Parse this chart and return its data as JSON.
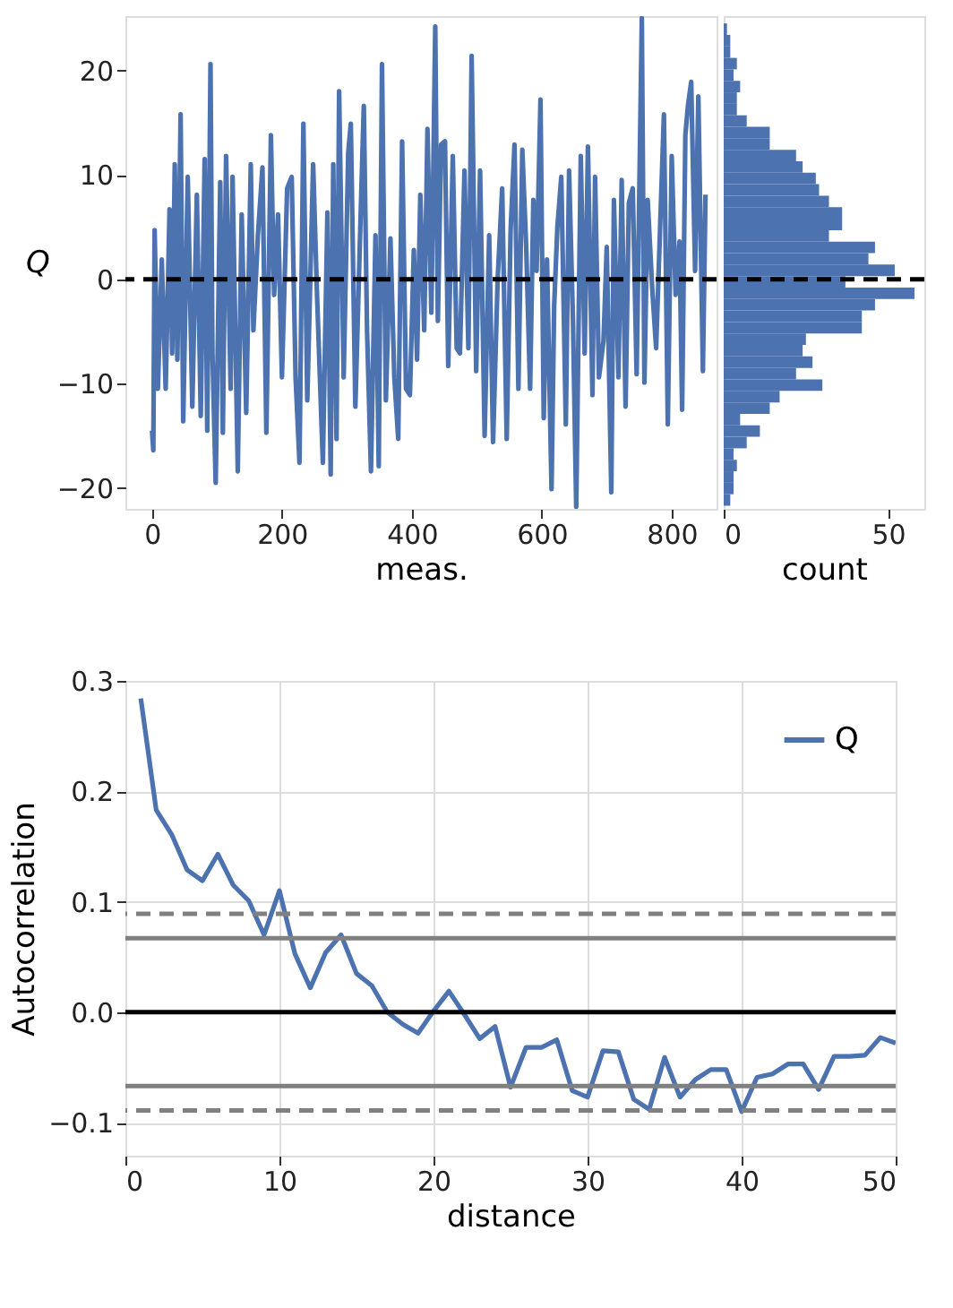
{
  "chart_data": [
    {
      "type": "line",
      "xlabel": "meas.",
      "ylabel": "Q",
      "xlim": [
        -41,
        869
      ],
      "ylim": [
        -22,
        25.2
      ],
      "xticks": [
        0,
        200,
        400,
        600,
        800
      ],
      "yticks": [
        -20,
        -10,
        0,
        10,
        20
      ],
      "grid": false,
      "legend": false,
      "line_style": "solid",
      "marker": "none",
      "color": "#4c72b0",
      "x": [
        0,
        2,
        4,
        9,
        15,
        21,
        27,
        31,
        35,
        39,
        44,
        48,
        55,
        62,
        69,
        75,
        81,
        85,
        90,
        93,
        98,
        105,
        109,
        114,
        121,
        124,
        132,
        138,
        145,
        152,
        156,
        163,
        170,
        176,
        183,
        188,
        194,
        200,
        208,
        215,
        221,
        227,
        233,
        239,
        248,
        254,
        263,
        270,
        275,
        279,
        284,
        288,
        295,
        302,
        306,
        313,
        320,
        326,
        331,
        337,
        344,
        349,
        354,
        360,
        367,
        373,
        379,
        385,
        391,
        397,
        403,
        408,
        413,
        419,
        424,
        430,
        436,
        440,
        445,
        451,
        456,
        463,
        469,
        474,
        481,
        487,
        492,
        499,
        505,
        512,
        519,
        525,
        532,
        539,
        546,
        552,
        558,
        564,
        570,
        576,
        582,
        587,
        592,
        598,
        603,
        608,
        615,
        619,
        624,
        630,
        637,
        642,
        648,
        653,
        660,
        666,
        671,
        678,
        682,
        688,
        695,
        700,
        707,
        711,
        718,
        723,
        729,
        734,
        740,
        746,
        754,
        758,
        763,
        770,
        776,
        782,
        788,
        794,
        800,
        806,
        812,
        816,
        821,
        825,
        830,
        836,
        841,
        848,
        852
      ],
      "values": [
        -14.5,
        -16.4,
        4.7,
        -10.5,
        1.9,
        -10.5,
        6.7,
        -7.1,
        11.0,
        -7.7,
        15.8,
        -13.6,
        9.8,
        -12.2,
        8.1,
        -13.1,
        11.5,
        -14.5,
        20.6,
        -7.1,
        -19.5,
        9.3,
        -14.7,
        11.8,
        -10.5,
        9.8,
        -18.4,
        6.2,
        -12.8,
        11.0,
        -4.9,
        4.2,
        10.7,
        -14.7,
        13.8,
        -1.5,
        6.2,
        -9.4,
        8.7,
        9.8,
        -9.4,
        -17.6,
        14.9,
        -11.6,
        11.0,
        -1.5,
        -17.6,
        6.4,
        -18.7,
        11.0,
        -15.3,
        18.0,
        -9.4,
        12.1,
        14.9,
        -12.2,
        3.6,
        16.6,
        -4.9,
        -18.4,
        4.2,
        -17.9,
        20.6,
        -11.6,
        3.9,
        -9.4,
        -15.3,
        13.2,
        -10.5,
        -11.1,
        2.8,
        -7.7,
        8.1,
        -4.9,
        14.4,
        -3.2,
        24.2,
        -4.0,
        12.9,
        13.2,
        -8.3,
        11.8,
        -6.6,
        -7.1,
        10.4,
        -6.6,
        21.4,
        -8.8,
        10.4,
        -15.0,
        4.2,
        -15.6,
        -0.1,
        8.7,
        -15.3,
        4.7,
        12.9,
        -10.5,
        12.4,
        3.1,
        -10.5,
        7.6,
        0.8,
        17.2,
        -13.3,
        1.9,
        -20.1,
        -2.6,
        5.0,
        9.8,
        -13.9,
        10.4,
        -4.0,
        -21.8,
        11.8,
        -7.1,
        12.7,
        -11.1,
        9.8,
        -9.4,
        -5.9,
        3.1,
        -20.4,
        7.6,
        -9.4,
        9.5,
        -12.2,
        7.3,
        8.7,
        -9.1,
        25.0,
        -9.9,
        7.6,
        -0.9,
        -6.6,
        4.7,
        15.8,
        -13.9,
        11.8,
        -1.5,
        3.6,
        -12.5,
        13.8,
        16.6,
        18.9,
        0.8,
        17.5,
        -8.8,
        8.1
      ],
      "ref_lines": [
        {
          "axis": "y",
          "value": 0,
          "color": "#000000",
          "line_style": "dashed"
        }
      ]
    },
    {
      "type": "histogram",
      "orientation": "horizontal",
      "xlabel": "count",
      "xlim": [
        0,
        61
      ],
      "xticks": [
        0,
        50
      ],
      "ylim": [
        -22,
        25.2
      ],
      "tick_labels": "x",
      "grid": false,
      "color": "#4c72b0",
      "bins": [
        -21.7,
        -20.6,
        -19.5,
        -18.4,
        -17.3,
        -16.2,
        -15.1,
        -14.0,
        -12.9,
        -11.8,
        -10.7,
        -9.6,
        -8.5,
        -7.4,
        -6.3,
        -5.2,
        -4.1,
        -3.0,
        -1.9,
        -0.8,
        0.3,
        1.4,
        2.5,
        3.6,
        4.7,
        5.8,
        6.9,
        8.0,
        9.1,
        10.2,
        11.3,
        12.4,
        13.5,
        14.6,
        15.7,
        16.8,
        17.9,
        19.0,
        20.1,
        21.2,
        22.3,
        23.4,
        24.5
      ],
      "values": [
        2,
        3,
        3,
        4,
        3,
        7,
        11,
        5,
        14,
        17,
        30,
        22,
        27,
        24,
        25,
        42,
        42,
        46,
        58,
        37,
        52,
        44,
        46,
        32,
        36,
        36,
        32,
        29,
        28,
        24,
        22,
        14,
        14,
        7,
        4,
        4,
        5,
        3,
        4,
        2,
        2,
        1
      ],
      "ref_lines": [
        {
          "axis": "y",
          "value": 0,
          "color": "#000000",
          "line_style": "dashed"
        }
      ]
    },
    {
      "type": "line",
      "xlabel": "distance",
      "ylabel": "Autocorrelation",
      "xlim": [
        0,
        50
      ],
      "ylim": [
        -0.13,
        0.3
      ],
      "xticks": [
        0,
        10,
        20,
        30,
        40,
        50
      ],
      "yticks": [
        {
          "value": -0.1,
          "label": "−0.1"
        },
        {
          "value": 0,
          "label": "0.0"
        },
        {
          "value": 0.1,
          "label": "0.1"
        },
        {
          "value": 0.2,
          "label": "0.2"
        },
        {
          "value": 0.3,
          "label": "0.3"
        }
      ],
      "grid": true,
      "legend": "top right",
      "line_style": "solid",
      "marker": "none",
      "x": [
        1,
        2,
        3,
        4,
        5,
        6,
        7,
        8,
        9,
        10,
        11,
        12,
        13,
        14,
        15,
        16,
        17,
        18,
        19,
        20,
        21,
        22,
        23,
        24,
        25,
        26,
        27,
        28,
        29,
        30,
        31,
        32,
        33,
        34,
        35,
        36,
        37,
        38,
        39,
        40,
        41,
        42,
        43,
        44,
        45,
        46,
        47,
        48,
        49,
        50
      ],
      "series": [
        {
          "name": "Q",
          "color": "#4c72b0",
          "values": [
            0.284,
            0.183,
            0.161,
            0.129,
            0.119,
            0.143,
            0.115,
            0.101,
            0.07,
            0.11,
            0.053,
            0.022,
            0.054,
            0.07,
            0.035,
            0.024,
            0.0,
            -0.011,
            -0.019,
            0.001,
            0.019,
            -0.002,
            -0.024,
            -0.013,
            -0.068,
            -0.032,
            -0.032,
            -0.025,
            -0.071,
            -0.077,
            -0.035,
            -0.036,
            -0.079,
            -0.088,
            -0.041,
            -0.077,
            -0.061,
            -0.052,
            -0.052,
            -0.09,
            -0.059,
            -0.056,
            -0.047,
            -0.047,
            -0.07,
            -0.04,
            -0.04,
            -0.039,
            -0.023,
            -0.028
          ]
        }
      ],
      "ref_lines": [
        {
          "axis": "y",
          "value": 0,
          "color": "#000000",
          "line_style": "solid"
        },
        {
          "axis": "y",
          "value": 0.067,
          "color": "#808080",
          "line_style": "solid"
        },
        {
          "axis": "y",
          "value": -0.067,
          "color": "#808080",
          "line_style": "solid"
        },
        {
          "axis": "y",
          "value": 0.089,
          "color": "#808080",
          "line_style": "dashed"
        },
        {
          "axis": "y",
          "value": -0.089,
          "color": "#808080",
          "line_style": "dashed"
        }
      ]
    }
  ]
}
